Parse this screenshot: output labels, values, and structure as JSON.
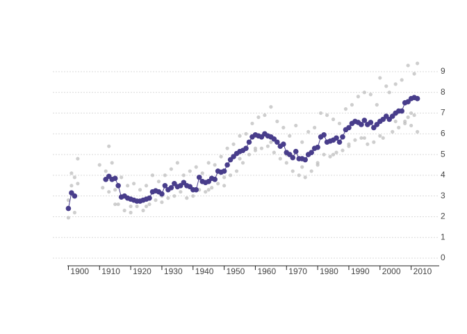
{
  "chart_data": {
    "type": "scatter-line",
    "xlim": [
      1895,
      2019
    ],
    "ylim": [
      0,
      9
    ],
    "xticks": [
      1900,
      1910,
      1920,
      1930,
      1940,
      1950,
      1960,
      1970,
      1980,
      1990,
      2000,
      2010
    ],
    "yticks": [
      0,
      1,
      2,
      3,
      4,
      5,
      6,
      7,
      8,
      9
    ],
    "grid": true,
    "series": [
      {
        "kind": "points",
        "color": "#bdbdbd",
        "x": [
          1900,
          1900,
          1901,
          1901,
          1902,
          1902,
          1903,
          1903,
          1910,
          1911,
          1912,
          1913,
          1913,
          1914,
          1915,
          1916,
          1917,
          1918,
          1919,
          1920,
          1921,
          1922,
          1923,
          1924,
          1925,
          1926,
          1927,
          1928,
          1929,
          1930,
          1931,
          1932,
          1933,
          1934,
          1935,
          1936,
          1937,
          1938,
          1939,
          1940,
          1941,
          1942,
          1943,
          1944,
          1945,
          1946,
          1947,
          1948,
          1949,
          1950,
          1951,
          1952,
          1953,
          1954,
          1955,
          1956,
          1957,
          1958,
          1959,
          1960,
          1961,
          1962,
          1963,
          1964,
          1965,
          1966,
          1967,
          1968,
          1969,
          1970,
          1971,
          1972,
          1973,
          1974,
          1975,
          1976,
          1977,
          1978,
          1979,
          1980,
          1981,
          1982,
          1983,
          1984,
          1985,
          1986,
          1987,
          1988,
          1989,
          1990,
          1991,
          1992,
          1993,
          1994,
          1995,
          1996,
          1997,
          1998,
          1999,
          2000,
          2001,
          2002,
          2003,
          2004,
          2005,
          2006,
          2007,
          2008,
          2009,
          2010,
          2011,
          2012,
          2012,
          2011,
          2010,
          2009,
          2008,
          2005,
          2000,
          1995,
          1990,
          1985,
          1980,
          1975,
          1970,
          1965,
          1960,
          1955,
          1950,
          1945,
          1940,
          1935,
          1930,
          1925,
          1920,
          1915
        ],
        "y": [
          1.95,
          2.8,
          4.1,
          3.5,
          3.9,
          2.2,
          4.8,
          3.6,
          4.5,
          3.4,
          4.2,
          5.4,
          3.2,
          4.6,
          3.3,
          2.6,
          3.9,
          2.3,
          3.5,
          2.2,
          3.6,
          2.5,
          3.3,
          2.3,
          3.5,
          2.6,
          4.0,
          2.8,
          3.7,
          2.7,
          4.0,
          2.9,
          4.3,
          3.0,
          4.6,
          3.2,
          4.0,
          2.9,
          4.2,
          3.0,
          4.4,
          3.3,
          4.1,
          3.2,
          4.6,
          3.4,
          4.5,
          3.6,
          4.9,
          3.5,
          5.3,
          4.0,
          5.5,
          4.2,
          5.9,
          4.6,
          6.0,
          5.0,
          6.5,
          5.2,
          6.8,
          5.3,
          6.9,
          5.4,
          7.3,
          5.1,
          6.6,
          4.8,
          6.3,
          4.6,
          5.9,
          4.2,
          6.4,
          4.0,
          5.6,
          3.9,
          6.1,
          4.2,
          6.3,
          4.6,
          7.0,
          5.0,
          6.9,
          4.9,
          6.7,
          5.1,
          6.5,
          5.2,
          7.2,
          5.4,
          7.4,
          5.7,
          7.8,
          5.8,
          8.0,
          5.5,
          7.9,
          5.6,
          7.4,
          8.7,
          5.8,
          8.3,
          8.0,
          6.1,
          8.4,
          6.3,
          8.6,
          6.5,
          9.3,
          6.4,
          8.9,
          9.4,
          6.1,
          6.9,
          7.0,
          6.8,
          6.6,
          6.6,
          5.9,
          5.8,
          5.5,
          5.0,
          4.5,
          4.4,
          5.0,
          5.6,
          5.3,
          4.8,
          3.9,
          3.3,
          3.3,
          3.4,
          3.0,
          2.5,
          2.5,
          2.6
        ]
      },
      {
        "kind": "line",
        "color": "#483d8b",
        "x": [
          1900,
          1901,
          1902,
          1903,
          1904,
          1905,
          1906,
          1907,
          1908,
          1909,
          1910,
          1911,
          1912,
          1913,
          1914,
          1915,
          1916,
          1917,
          1918,
          1919,
          1920,
          1921,
          1922,
          1923,
          1924,
          1925,
          1926,
          1927,
          1928,
          1929,
          1930,
          1931,
          1932,
          1933,
          1934,
          1935,
          1936,
          1937,
          1938,
          1939,
          1940,
          1941,
          1942,
          1943,
          1944,
          1945,
          1946,
          1947,
          1948,
          1949,
          1950,
          1951,
          1952,
          1953,
          1954,
          1955,
          1956,
          1957,
          1958,
          1959,
          1960,
          1961,
          1962,
          1963,
          1964,
          1965,
          1966,
          1967,
          1968,
          1969,
          1970,
          1971,
          1972,
          1973,
          1974,
          1975,
          1976,
          1977,
          1978,
          1979,
          1980,
          1981,
          1982,
          1983,
          1984,
          1985,
          1986,
          1987,
          1988,
          1989,
          1990,
          1991,
          1992,
          1993,
          1994,
          1995,
          1996,
          1997,
          1998,
          1999,
          2000,
          2001,
          2002,
          2003,
          2004,
          2005,
          2006,
          2007,
          2008,
          2009,
          2010,
          2011,
          2012
        ],
        "y": [
          2.4,
          3.15,
          3.0,
          null,
          null,
          null,
          null,
          null,
          null,
          null,
          null,
          null,
          3.8,
          3.95,
          3.8,
          3.85,
          3.5,
          2.95,
          3.0,
          2.9,
          2.85,
          2.8,
          2.75,
          2.75,
          2.8,
          2.85,
          2.9,
          3.2,
          3.25,
          3.2,
          3.1,
          3.5,
          3.3,
          3.4,
          3.6,
          3.45,
          3.5,
          3.65,
          3.5,
          3.45,
          3.3,
          3.3,
          3.9,
          3.7,
          3.65,
          3.7,
          3.85,
          3.8,
          4.2,
          4.15,
          4.2,
          4.5,
          4.75,
          4.9,
          5.05,
          5.15,
          5.2,
          5.3,
          5.6,
          5.85,
          5.95,
          5.9,
          5.85,
          6.0,
          5.9,
          5.85,
          5.75,
          5.6,
          5.4,
          5.5,
          5.1,
          5.0,
          4.85,
          5.15,
          4.8,
          4.8,
          4.75,
          5.0,
          5.1,
          5.3,
          5.35,
          5.85,
          5.95,
          5.6,
          5.65,
          5.7,
          5.8,
          5.6,
          5.85,
          6.2,
          6.3,
          6.5,
          6.6,
          6.55,
          6.45,
          6.65,
          6.45,
          6.55,
          6.3,
          6.45,
          6.6,
          6.7,
          6.85,
          6.7,
          6.85,
          7.0,
          7.1,
          7.1,
          7.5,
          7.55,
          7.7,
          7.75,
          7.7
        ]
      }
    ]
  }
}
